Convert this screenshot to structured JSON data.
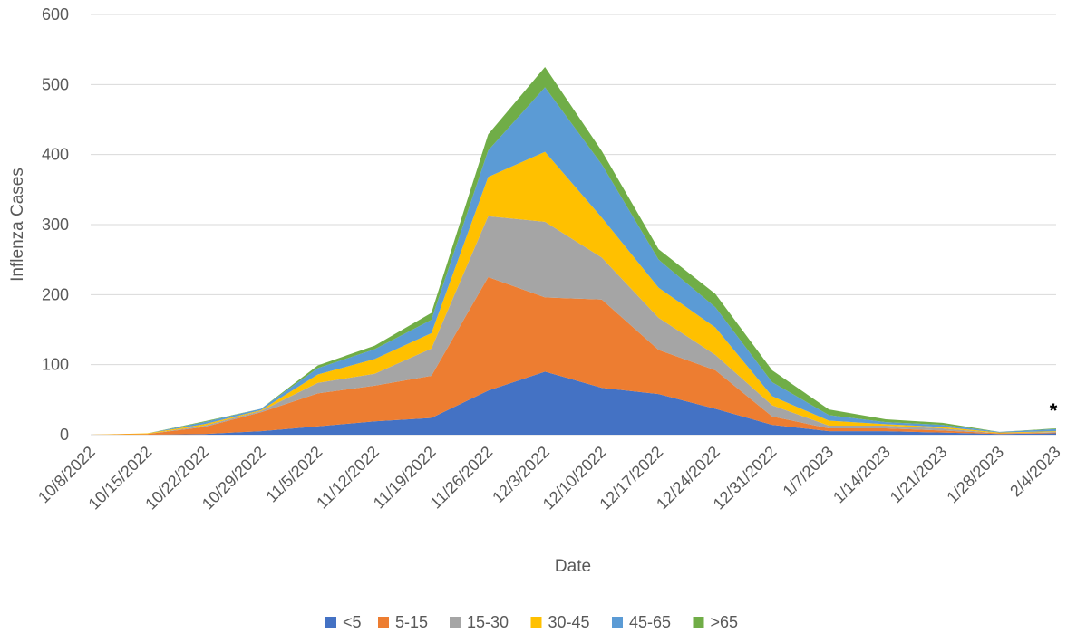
{
  "chart_data": {
    "type": "area",
    "stacked": true,
    "title": "",
    "xlabel": "Date",
    "ylabel": "Inflenza Cases",
    "ylim": [
      0,
      600
    ],
    "yticks": [
      0,
      100,
      200,
      300,
      400,
      500,
      600
    ],
    "ytick_labels": [
      "0",
      "100",
      "200",
      "300",
      "400",
      "500",
      "600"
    ],
    "grid": "horizontal",
    "legend_position": "bottom",
    "categories": [
      "10/8/2022",
      "10/15/2022",
      "10/22/2022",
      "10/29/2022",
      "11/5/2022",
      "11/12/2022",
      "11/19/2022",
      "11/26/2022",
      "12/3/2022",
      "12/10/2022",
      "12/17/2022",
      "12/24/2022",
      "12/31/2022",
      "1/7/2023",
      "1/14/2023",
      "1/21/2023",
      "1/28/2023",
      "2/4/2023"
    ],
    "series": [
      {
        "name": "<5",
        "color": "#4472C4",
        "values": [
          0,
          0,
          1,
          5,
          12,
          19,
          24,
          63,
          90,
          67,
          58,
          37,
          14,
          5,
          5,
          3,
          1,
          2
        ]
      },
      {
        "name": "5-15",
        "color": "#ED7D31",
        "values": [
          0,
          1,
          10,
          27,
          47,
          51,
          60,
          162,
          106,
          126,
          63,
          55,
          12,
          4,
          4,
          3,
          1,
          1
        ]
      },
      {
        "name": "15-30",
        "color": "#A5A5A5",
        "values": [
          0,
          0,
          2,
          2,
          15,
          17,
          39,
          87,
          108,
          60,
          46,
          22,
          16,
          4,
          4,
          3,
          0,
          1
        ]
      },
      {
        "name": "30-45",
        "color": "#FFC000",
        "values": [
          0,
          1,
          2,
          1,
          12,
          21,
          22,
          56,
          100,
          57,
          43,
          39,
          13,
          7,
          2,
          2,
          1,
          1
        ]
      },
      {
        "name": "45-65",
        "color": "#5B9BD5",
        "values": [
          0,
          0,
          3,
          2,
          9,
          14,
          19,
          38,
          92,
          76,
          40,
          29,
          20,
          8,
          3,
          3,
          1,
          3
        ]
      },
      {
        "name": ">65",
        "color": "#70AD47",
        "values": [
          0,
          0,
          1,
          0,
          4,
          5,
          10,
          23,
          29,
          19,
          15,
          19,
          17,
          8,
          4,
          3,
          0,
          1
        ]
      }
    ],
    "annotations": [
      {
        "text": "*",
        "at": "2/4/2023"
      }
    ]
  }
}
